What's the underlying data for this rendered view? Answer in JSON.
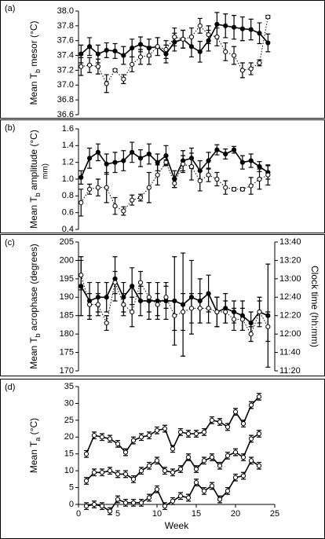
{
  "chart_data": [
    {
      "type": "line",
      "panel_label": "(a)",
      "ylabel": [
        "Mean T",
        "b",
        " mesor (°C)"
      ],
      "x": [
        1,
        2,
        3,
        4,
        5,
        6,
        7,
        8,
        9,
        10,
        11,
        12,
        13,
        14,
        15,
        16,
        17,
        18,
        19,
        20,
        21,
        22,
        23
      ],
      "ylim": [
        36.6,
        38.0
      ],
      "yticks": [
        36.6,
        36.8,
        {
          "value": 37,
          "label": "37.0"
        },
        37.2,
        37.4,
        37.6,
        37.8,
        {
          "value": 38,
          "label": "38.0"
        }
      ],
      "series": [
        {
          "color": "#000000",
          "style": "solid",
          "marker": "filled",
          "values": [
            37.42,
            37.52,
            37.42,
            37.47,
            37.46,
            37.4,
            37.5,
            37.55,
            37.5,
            37.52,
            37.42,
            37.58,
            37.62,
            37.52,
            37.45,
            37.6,
            37.82,
            37.8,
            37.78,
            37.76,
            37.75,
            37.7,
            37.57
          ],
          "errors": [
            0.12,
            0.12,
            0.12,
            0.1,
            0.1,
            0.12,
            0.12,
            0.1,
            0.12,
            0.12,
            0.12,
            0.12,
            0.12,
            0.14,
            0.14,
            0.14,
            0.16,
            0.16,
            0.16,
            0.16,
            0.14,
            0.14,
            0.12
          ]
        },
        {
          "color": "#000000",
          "style": "dotted",
          "marker": "open",
          "values": [
            37.25,
            37.27,
            37.25,
            37.02,
            37.2,
            37.08,
            37.28,
            37.38,
            37.4,
            37.52,
            37.48,
            37.65,
            37.62,
            37.65,
            37.8,
            37.68,
            37.65,
            37.45,
            37.4,
            37.2,
            37.22,
            37.3,
            37.92
          ],
          "errors": [
            0.12,
            0.1,
            0.1,
            0.12,
            0.02,
            0.06,
            0.1,
            0.1,
            0.12,
            0.12,
            0.12,
            0.12,
            0.12,
            0.12,
            0.1,
            0.12,
            0.12,
            0.12,
            0.12,
            0.1,
            0.08,
            0.04,
            0.02
          ]
        }
      ]
    },
    {
      "type": "line",
      "panel_label": "(b)",
      "ylabel": [
        "Mean T",
        "b",
        " amplitude (°C)"
      ],
      "annotation": "mm)",
      "x": [
        1,
        2,
        3,
        4,
        5,
        6,
        7,
        8,
        9,
        10,
        11,
        12,
        13,
        14,
        15,
        16,
        17,
        18,
        19,
        20,
        21,
        22,
        23
      ],
      "ylim": [
        0.4,
        1.6
      ],
      "yticks": [
        0.4,
        0.6,
        0.8,
        {
          "value": 1,
          "label": "1.0"
        },
        1.2,
        1.4,
        1.6
      ],
      "series": [
        {
          "color": "#000000",
          "style": "solid",
          "marker": "filled",
          "values": [
            1.02,
            1.25,
            1.32,
            1.18,
            1.2,
            1.22,
            1.32,
            1.25,
            1.3,
            1.2,
            1.28,
            1.0,
            1.22,
            1.25,
            1.1,
            1.22,
            1.35,
            1.3,
            1.35,
            1.2,
            1.22,
            1.15,
            1.08
          ],
          "errors": [
            0.08,
            0.12,
            0.1,
            0.12,
            0.12,
            0.12,
            0.12,
            0.1,
            0.12,
            0.1,
            0.12,
            0.1,
            0.12,
            0.12,
            0.12,
            0.1,
            0.06,
            0.06,
            0.04,
            0.08,
            0.08,
            0.06,
            0.08
          ]
        },
        {
          "color": "#000000",
          "style": "dotted",
          "marker": "open",
          "values": [
            0.72,
            0.88,
            0.9,
            0.9,
            0.68,
            0.62,
            0.75,
            0.78,
            0.9,
            1.05,
            1.2,
            0.95,
            1.18,
            1.15,
            0.98,
            1.05,
            1.0,
            0.9,
            0.88,
            0.88,
            0.92,
            1.0,
            1.05
          ],
          "errors": [
            0.16,
            0.06,
            0.1,
            0.18,
            0.1,
            0.05,
            0.06,
            0.04,
            0.18,
            0.12,
            0.03,
            0.05,
            0.1,
            0.16,
            0.12,
            0.08,
            0.08,
            0.08,
            0.02,
            0.02,
            0.1,
            0.12,
            0.12
          ]
        }
      ]
    },
    {
      "type": "line",
      "panel_label": "(c)",
      "ylabel": [
        "Mean T",
        "b",
        " acrophase (degrees)"
      ],
      "y2label": "Clock time (hh:mm)",
      "x": [
        1,
        2,
        3,
        4,
        5,
        6,
        7,
        8,
        9,
        10,
        11,
        12,
        13,
        14,
        15,
        16,
        17,
        18,
        19,
        20,
        21,
        22,
        23
      ],
      "ylim": [
        170,
        205
      ],
      "yticks": [
        170,
        175,
        180,
        185,
        190,
        195,
        200,
        205
      ],
      "y2lim": [
        680,
        820
      ],
      "y2ticks": [
        {
          "value": 680,
          "label": "11:20"
        },
        {
          "value": 700,
          "label": "11:40"
        },
        {
          "value": 720,
          "label": "12:00"
        },
        {
          "value": 740,
          "label": "12:20"
        },
        {
          "value": 760,
          "label": "12:40"
        },
        {
          "value": 780,
          "label": "13:00"
        },
        {
          "value": 800,
          "label": "13:20"
        },
        {
          "value": 820,
          "label": "13:40"
        }
      ],
      "series": [
        {
          "color": "#000000",
          "style": "solid",
          "marker": "filled",
          "values": [
            193,
            189,
            190,
            190,
            195,
            190,
            193,
            189,
            189,
            189,
            189,
            189,
            188,
            190,
            189,
            191,
            186,
            187,
            186,
            185,
            183,
            186,
            185
          ],
          "errors": [
            8,
            5,
            4,
            4,
            6,
            4,
            5,
            4,
            5,
            5,
            5,
            12,
            14,
            10,
            6,
            5,
            4,
            4,
            3,
            4,
            3,
            4,
            14
          ]
        },
        {
          "color": "#000000",
          "style": "dotted",
          "marker": "open",
          "values": [
            196,
            188,
            188,
            183,
            194,
            188,
            186,
            194,
            190,
            188,
            190,
            185,
            186,
            187,
            187,
            187,
            186,
            186,
            184,
            184,
            180,
            186,
            182
          ],
          "errors": [
            4,
            3,
            3,
            2,
            3,
            3,
            4,
            3,
            4,
            3,
            3,
            4,
            5,
            4,
            4,
            4,
            4,
            3,
            3,
            3,
            2,
            3,
            4
          ]
        }
      ]
    },
    {
      "type": "line",
      "panel_label": "(d)",
      "ylabel": [
        "Mean T",
        "a",
        " (°C)"
      ],
      "xlabel": "Week",
      "x": [
        1,
        2,
        3,
        4,
        5,
        6,
        7,
        8,
        9,
        10,
        11,
        12,
        13,
        14,
        15,
        16,
        17,
        18,
        19,
        20,
        21,
        22,
        23
      ],
      "xlim": [
        0,
        25
      ],
      "xticks": [
        0,
        5,
        10,
        15,
        20,
        25
      ],
      "ylim": [
        0,
        35
      ],
      "yticks": [
        0,
        5,
        10,
        15,
        20,
        25,
        30,
        35
      ],
      "series": [
        {
          "color": "#000000",
          "style": "solid",
          "marker": "open",
          "values": [
            15,
            20.5,
            20,
            19.5,
            18,
            15.5,
            19,
            20,
            20.5,
            22,
            22.5,
            16.5,
            21.5,
            21,
            21,
            21.5,
            25,
            24.5,
            23,
            27.5,
            24,
            29.5,
            32
          ],
          "errors": [
            1,
            1,
            1,
            1,
            1,
            1,
            1,
            1,
            1,
            1,
            1,
            1,
            1,
            1,
            1,
            1,
            1,
            1,
            1,
            1,
            1,
            1,
            1
          ]
        },
        {
          "color": "#000000",
          "style": "solid",
          "marker": "open",
          "values": [
            7,
            9.5,
            9.5,
            10,
            9,
            9,
            7.5,
            10,
            11.5,
            13,
            10,
            9.5,
            10.5,
            14,
            10.5,
            13,
            14,
            11.5,
            14.5,
            15.5,
            14,
            19.5,
            21
          ],
          "errors": [
            1,
            1,
            1,
            1,
            1,
            1,
            1,
            1,
            1,
            1,
            1,
            1,
            1,
            1,
            1,
            1,
            1,
            1,
            1,
            1,
            1,
            1,
            1
          ]
        },
        {
          "color": "#000000",
          "style": "solid",
          "marker": "open",
          "values": [
            -0.5,
            0,
            -0.5,
            -2,
            1.5,
            0.5,
            0.5,
            0.5,
            2,
            4.5,
            -0.5,
            1,
            2.5,
            2,
            6.5,
            4,
            5.5,
            1.5,
            4,
            8,
            8.5,
            13,
            11.5
          ],
          "errors": [
            1,
            1,
            1,
            1,
            1,
            1,
            1,
            1,
            1,
            1,
            1,
            1,
            1,
            1,
            1,
            1,
            1,
            1,
            1,
            1,
            1,
            1,
            1
          ]
        }
      ]
    }
  ]
}
